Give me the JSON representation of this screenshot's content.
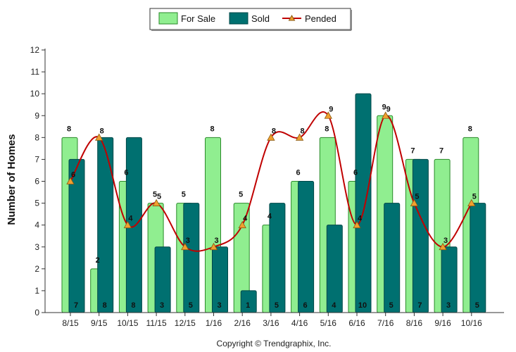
{
  "chart_data": {
    "type": "bar",
    "title": "",
    "xlabel": "",
    "ylabel": "Number of Homes",
    "ylim": [
      0,
      12
    ],
    "yticks": [
      0,
      1,
      2,
      3,
      4,
      5,
      6,
      7,
      8,
      9,
      10,
      11,
      12
    ],
    "categories": [
      "8/15",
      "9/15",
      "10/15",
      "11/15",
      "12/15",
      "1/16",
      "2/16",
      "3/16",
      "4/16",
      "5/16",
      "6/16",
      "7/16",
      "8/16",
      "9/16",
      "10/16"
    ],
    "series": [
      {
        "name": "For Sale",
        "kind": "bar",
        "color": "#90EE90",
        "stroke": "#2a8a2a",
        "values": [
          8,
          2,
          6,
          5,
          5,
          8,
          5,
          4,
          6,
          8,
          6,
          9,
          7,
          7,
          8
        ]
      },
      {
        "name": "Sold",
        "kind": "bar",
        "color": "#007070",
        "stroke": "#004848",
        "values": [
          7,
          8,
          8,
          3,
          5,
          3,
          1,
          5,
          6,
          4,
          10,
          5,
          7,
          3,
          5
        ]
      },
      {
        "name": "Pended",
        "kind": "line",
        "color": "#C00000",
        "marker": "#F0A030",
        "values": [
          6,
          8,
          4,
          5,
          3,
          3,
          4,
          8,
          8,
          9,
          4,
          9,
          5,
          3,
          5
        ]
      }
    ],
    "legend_position": "top-center",
    "copyright": "Copyright © Trendgraphix, Inc."
  }
}
